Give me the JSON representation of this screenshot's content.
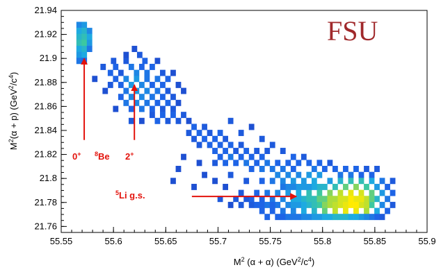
{
  "chart_data": {
    "type": "heatmap",
    "title": "",
    "watermark": "FSU",
    "watermark_color": "#a0292b",
    "annotation_color": "#e3120b",
    "xlabel": {
      "pre": "M",
      "sup1": "2",
      "mid": " (α + α) (GeV",
      "sup2": "2",
      "slash": "/c",
      "sup3": "4",
      "post": ")"
    },
    "ylabel": {
      "pre": "M",
      "sup1": "2",
      "mid": "(α + p) (GeV",
      "sup2": "2",
      "slash": "/c",
      "sup3": "4",
      "post": ")"
    },
    "xlim": [
      55.55,
      55.9
    ],
    "ylim": [
      21.755,
      21.94
    ],
    "xticks": [
      55.55,
      55.6,
      55.65,
      55.7,
      55.75,
      55.8,
      55.85,
      55.9
    ],
    "xtick_labels": [
      "55.55",
      "55.6",
      "55.65",
      "55.7",
      "55.75",
      "55.8",
      "55.85",
      "55.9"
    ],
    "yticks": [
      21.76,
      21.78,
      21.8,
      21.82,
      21.84,
      21.86,
      21.88,
      21.9,
      21.92,
      21.94
    ],
    "ytick_labels": [
      "21.76",
      "21.78",
      "21.8",
      "21.82",
      "21.84",
      "21.86",
      "21.88",
      "21.9",
      "21.92",
      "21.94"
    ],
    "grid": false,
    "colormap": "blue-cyan-green-yellow",
    "bin_width": [
      0.005,
      0.005
    ],
    "cells": [
      [
        55.567,
        21.928,
        0.4
      ],
      [
        55.572,
        21.928,
        0.45
      ],
      [
        55.567,
        21.923,
        0.5
      ],
      [
        55.572,
        21.923,
        0.55
      ],
      [
        55.577,
        21.923,
        0.4
      ],
      [
        55.567,
        21.918,
        0.55
      ],
      [
        55.572,
        21.918,
        0.6
      ],
      [
        55.577,
        21.918,
        0.5
      ],
      [
        55.567,
        21.913,
        0.6
      ],
      [
        55.572,
        21.913,
        0.65
      ],
      [
        55.577,
        21.913,
        0.45
      ],
      [
        55.567,
        21.908,
        0.5
      ],
      [
        55.572,
        21.908,
        0.55
      ],
      [
        55.577,
        21.908,
        0.35
      ],
      [
        55.567,
        21.903,
        0.45
      ],
      [
        55.572,
        21.903,
        0.5
      ],
      [
        55.567,
        21.898,
        0.35
      ],
      [
        55.572,
        21.898,
        0.3
      ],
      [
        55.6,
        21.898,
        0.25
      ],
      [
        55.625,
        21.903,
        0.25
      ],
      [
        55.63,
        21.898,
        0.3
      ],
      [
        55.62,
        21.908,
        0.2
      ],
      [
        55.637,
        21.893,
        0.3
      ],
      [
        55.642,
        21.898,
        0.2
      ],
      [
        55.59,
        21.893,
        0.25
      ],
      [
        55.597,
        21.888,
        0.3
      ],
      [
        55.602,
        21.893,
        0.3
      ],
      [
        55.607,
        21.888,
        0.25
      ],
      [
        55.612,
        21.898,
        0.25
      ],
      [
        55.617,
        21.893,
        0.35
      ],
      [
        55.622,
        21.888,
        0.4
      ],
      [
        55.627,
        21.893,
        0.3
      ],
      [
        55.632,
        21.888,
        0.35
      ],
      [
        55.647,
        21.888,
        0.25
      ],
      [
        55.652,
        21.883,
        0.3
      ],
      [
        55.602,
        21.883,
        0.3
      ],
      [
        55.607,
        21.878,
        0.3
      ],
      [
        55.612,
        21.883,
        0.4
      ],
      [
        55.617,
        21.878,
        0.45
      ],
      [
        55.622,
        21.883,
        0.45
      ],
      [
        55.627,
        21.878,
        0.4
      ],
      [
        55.632,
        21.883,
        0.35
      ],
      [
        55.637,
        21.878,
        0.3
      ],
      [
        55.642,
        21.883,
        0.35
      ],
      [
        55.647,
        21.878,
        0.3
      ],
      [
        55.612,
        21.873,
        0.35
      ],
      [
        55.617,
        21.868,
        0.4
      ],
      [
        55.622,
        21.873,
        0.45
      ],
      [
        55.627,
        21.868,
        0.4
      ],
      [
        55.632,
        21.873,
        0.4
      ],
      [
        55.637,
        21.868,
        0.35
      ],
      [
        55.642,
        21.873,
        0.35
      ],
      [
        55.647,
        21.868,
        0.3
      ],
      [
        55.652,
        21.873,
        0.25
      ],
      [
        55.657,
        21.868,
        0.25
      ],
      [
        55.607,
        21.868,
        0.3
      ],
      [
        55.612,
        21.863,
        0.35
      ],
      [
        55.617,
        21.858,
        0.3
      ],
      [
        55.622,
        21.863,
        0.4
      ],
      [
        55.627,
        21.858,
        0.35
      ],
      [
        55.632,
        21.863,
        0.35
      ],
      [
        55.637,
        21.858,
        0.3
      ],
      [
        55.642,
        21.863,
        0.3
      ],
      [
        55.647,
        21.858,
        0.25
      ],
      [
        55.652,
        21.863,
        0.3
      ],
      [
        55.657,
        21.858,
        0.25
      ],
      [
        55.662,
        21.863,
        0.2
      ],
      [
        55.637,
        21.853,
        0.25
      ],
      [
        55.642,
        21.848,
        0.3
      ],
      [
        55.647,
        21.853,
        0.3
      ],
      [
        55.652,
        21.848,
        0.25
      ],
      [
        55.657,
        21.853,
        0.3
      ],
      [
        55.662,
        21.848,
        0.25
      ],
      [
        55.667,
        21.853,
        0.25
      ],
      [
        55.672,
        21.848,
        0.2
      ],
      [
        55.597,
        21.878,
        0.25
      ],
      [
        55.592,
        21.873,
        0.2
      ],
      [
        55.602,
        21.858,
        0.2
      ],
      [
        55.627,
        21.848,
        0.2
      ],
      [
        55.617,
        21.848,
        0.25
      ],
      [
        55.667,
        21.873,
        0.2
      ],
      [
        55.662,
        21.878,
        0.2
      ],
      [
        55.657,
        21.888,
        0.2
      ],
      [
        55.582,
        21.883,
        0.2
      ],
      [
        55.612,
        21.903,
        0.2
      ],
      [
        55.672,
        21.838,
        0.25
      ],
      [
        55.677,
        21.843,
        0.3
      ],
      [
        55.682,
        21.838,
        0.3
      ],
      [
        55.687,
        21.843,
        0.25
      ],
      [
        55.692,
        21.838,
        0.25
      ],
      [
        55.697,
        21.833,
        0.3
      ],
      [
        55.702,
        21.838,
        0.3
      ],
      [
        55.707,
        21.833,
        0.25
      ],
      [
        55.677,
        21.833,
        0.25
      ],
      [
        55.682,
        21.828,
        0.25
      ],
      [
        55.687,
        21.833,
        0.3
      ],
      [
        55.692,
        21.828,
        0.3
      ],
      [
        55.697,
        21.823,
        0.3
      ],
      [
        55.702,
        21.828,
        0.3
      ],
      [
        55.707,
        21.823,
        0.3
      ],
      [
        55.712,
        21.828,
        0.3
      ],
      [
        55.717,
        21.823,
        0.25
      ],
      [
        55.722,
        21.828,
        0.25
      ],
      [
        55.727,
        21.823,
        0.3
      ],
      [
        55.732,
        21.818,
        0.3
      ],
      [
        55.737,
        21.823,
        0.25
      ],
      [
        55.742,
        21.818,
        0.3
      ],
      [
        55.747,
        21.823,
        0.25
      ],
      [
        55.697,
        21.813,
        0.25
      ],
      [
        55.702,
        21.818,
        0.3
      ],
      [
        55.707,
        21.813,
        0.3
      ],
      [
        55.712,
        21.818,
        0.35
      ],
      [
        55.717,
        21.813,
        0.3
      ],
      [
        55.722,
        21.818,
        0.3
      ],
      [
        55.727,
        21.813,
        0.35
      ],
      [
        55.732,
        21.808,
        0.3
      ],
      [
        55.737,
        21.813,
        0.3
      ],
      [
        55.742,
        21.808,
        0.35
      ],
      [
        55.747,
        21.813,
        0.35
      ],
      [
        55.752,
        21.808,
        0.35
      ],
      [
        55.757,
        21.813,
        0.3
      ],
      [
        55.762,
        21.808,
        0.35
      ],
      [
        55.767,
        21.813,
        0.3
      ],
      [
        55.772,
        21.808,
        0.3
      ],
      [
        55.712,
        21.848,
        0.25
      ],
      [
        55.722,
        21.838,
        0.25
      ],
      [
        55.732,
        21.843,
        0.2
      ],
      [
        55.742,
        21.833,
        0.25
      ],
      [
        55.752,
        21.828,
        0.25
      ],
      [
        55.762,
        21.823,
        0.25
      ],
      [
        55.772,
        21.818,
        0.3
      ],
      [
        55.777,
        21.813,
        0.3
      ],
      [
        55.782,
        21.818,
        0.25
      ],
      [
        55.787,
        21.813,
        0.3
      ],
      [
        55.792,
        21.808,
        0.35
      ],
      [
        55.797,
        21.813,
        0.3
      ],
      [
        55.802,
        21.808,
        0.3
      ],
      [
        55.807,
        21.813,
        0.25
      ],
      [
        55.812,
        21.808,
        0.3
      ],
      [
        55.817,
        21.803,
        0.35
      ],
      [
        55.822,
        21.808,
        0.3
      ],
      [
        55.827,
        21.803,
        0.35
      ],
      [
        55.832,
        21.808,
        0.3
      ],
      [
        55.837,
        21.803,
        0.3
      ],
      [
        55.842,
        21.808,
        0.25
      ],
      [
        55.847,
        21.803,
        0.3
      ],
      [
        55.852,
        21.808,
        0.25
      ],
      [
        55.667,
        21.818,
        0.2
      ],
      [
        55.662,
        21.808,
        0.2
      ],
      [
        55.657,
        21.798,
        0.2
      ],
      [
        55.682,
        21.813,
        0.2
      ],
      [
        55.727,
        21.798,
        0.25
      ],
      [
        55.712,
        21.803,
        0.25
      ],
      [
        55.742,
        21.798,
        0.3
      ],
      [
        55.752,
        21.798,
        0.35
      ],
      [
        55.757,
        21.803,
        0.4
      ],
      [
        55.762,
        21.798,
        0.4
      ],
      [
        55.767,
        21.803,
        0.4
      ],
      [
        55.772,
        21.798,
        0.45
      ],
      [
        55.777,
        21.803,
        0.4
      ],
      [
        55.782,
        21.798,
        0.45
      ],
      [
        55.787,
        21.803,
        0.45
      ],
      [
        55.792,
        21.798,
        0.5
      ],
      [
        55.797,
        21.803,
        0.45
      ],
      [
        55.722,
        21.788,
        0.25
      ],
      [
        55.732,
        21.783,
        0.3
      ],
      [
        55.737,
        21.788,
        0.3
      ],
      [
        55.742,
        21.783,
        0.3
      ],
      [
        55.747,
        21.788,
        0.35
      ],
      [
        55.752,
        21.783,
        0.35
      ],
      [
        55.757,
        21.788,
        0.4
      ],
      [
        55.762,
        21.783,
        0.4
      ],
      [
        55.767,
        21.788,
        0.45
      ],
      [
        55.772,
        21.783,
        0.5
      ],
      [
        55.777,
        21.788,
        0.5
      ],
      [
        55.782,
        21.783,
        0.55
      ],
      [
        55.787,
        21.788,
        0.6
      ],
      [
        55.792,
        21.783,
        0.6
      ],
      [
        55.797,
        21.788,
        0.65
      ],
      [
        55.802,
        21.783,
        0.7
      ],
      [
        55.807,
        21.788,
        0.75
      ],
      [
        55.812,
        21.783,
        0.8
      ],
      [
        55.817,
        21.788,
        0.85
      ],
      [
        55.822,
        21.783,
        0.9
      ],
      [
        55.827,
        21.788,
        0.95
      ],
      [
        55.832,
        21.783,
        0.95
      ],
      [
        55.837,
        21.788,
        0.9
      ],
      [
        55.842,
        21.783,
        0.85
      ],
      [
        55.847,
        21.788,
        0.7
      ],
      [
        55.852,
        21.783,
        0.55
      ],
      [
        55.857,
        21.788,
        0.45
      ],
      [
        55.862,
        21.783,
        0.35
      ],
      [
        55.867,
        21.788,
        0.3
      ],
      [
        55.802,
        21.793,
        0.55
      ],
      [
        55.807,
        21.798,
        0.45
      ],
      [
        55.812,
        21.793,
        0.6
      ],
      [
        55.817,
        21.798,
        0.55
      ],
      [
        55.822,
        21.793,
        0.7
      ],
      [
        55.827,
        21.798,
        0.6
      ],
      [
        55.832,
        21.793,
        0.75
      ],
      [
        55.837,
        21.798,
        0.6
      ],
      [
        55.842,
        21.793,
        0.65
      ],
      [
        55.847,
        21.798,
        0.5
      ],
      [
        55.852,
        21.793,
        0.45
      ],
      [
        55.857,
        21.798,
        0.35
      ],
      [
        55.862,
        21.793,
        0.3
      ],
      [
        55.867,
        21.798,
        0.25
      ],
      [
        55.757,
        21.778,
        0.35
      ],
      [
        55.762,
        21.773,
        0.35
      ],
      [
        55.767,
        21.778,
        0.4
      ],
      [
        55.772,
        21.773,
        0.4
      ],
      [
        55.777,
        21.778,
        0.45
      ],
      [
        55.782,
        21.773,
        0.5
      ],
      [
        55.787,
        21.778,
        0.55
      ],
      [
        55.792,
        21.773,
        0.55
      ],
      [
        55.797,
        21.778,
        0.65
      ],
      [
        55.802,
        21.773,
        0.7
      ],
      [
        55.807,
        21.778,
        0.8
      ],
      [
        55.812,
        21.773,
        0.85
      ],
      [
        55.817,
        21.778,
        0.9
      ],
      [
        55.822,
        21.773,
        0.95
      ],
      [
        55.827,
        21.778,
        1.0
      ],
      [
        55.832,
        21.773,
        0.95
      ],
      [
        55.837,
        21.778,
        0.9
      ],
      [
        55.842,
        21.773,
        0.8
      ],
      [
        55.847,
        21.778,
        0.65
      ],
      [
        55.852,
        21.773,
        0.5
      ],
      [
        55.857,
        21.778,
        0.4
      ],
      [
        55.862,
        21.773,
        0.3
      ],
      [
        55.867,
        21.778,
        0.25
      ],
      [
        55.742,
        21.773,
        0.3
      ],
      [
        55.747,
        21.768,
        0.3
      ],
      [
        55.752,
        21.773,
        0.3
      ],
      [
        55.757,
        21.768,
        0.3
      ],
      [
        55.762,
        21.768,
        0.3
      ],
      [
        55.767,
        21.768,
        0.35
      ],
      [
        55.772,
        21.768,
        0.35
      ],
      [
        55.777,
        21.768,
        0.35
      ],
      [
        55.782,
        21.768,
        0.4
      ],
      [
        55.787,
        21.768,
        0.4
      ],
      [
        55.792,
        21.768,
        0.45
      ],
      [
        55.797,
        21.768,
        0.45
      ],
      [
        55.802,
        21.768,
        0.5
      ],
      [
        55.807,
        21.768,
        0.5
      ],
      [
        55.812,
        21.768,
        0.55
      ],
      [
        55.817,
        21.768,
        0.55
      ],
      [
        55.822,
        21.768,
        0.55
      ],
      [
        55.827,
        21.768,
        0.5
      ],
      [
        55.832,
        21.768,
        0.5
      ],
      [
        55.837,
        21.768,
        0.45
      ],
      [
        55.842,
        21.768,
        0.4
      ],
      [
        55.847,
        21.768,
        0.35
      ],
      [
        55.852,
        21.768,
        0.3
      ],
      [
        55.857,
        21.768,
        0.25
      ],
      [
        55.742,
        21.778,
        0.3
      ],
      [
        55.732,
        21.778,
        0.25
      ],
      [
        55.727,
        21.783,
        0.25
      ],
      [
        55.717,
        21.783,
        0.25
      ],
      [
        55.702,
        21.783,
        0.25
      ],
      [
        55.712,
        21.778,
        0.2
      ],
      [
        55.722,
        21.778,
        0.25
      ],
      [
        55.737,
        21.778,
        0.3
      ],
      [
        55.747,
        21.778,
        0.35
      ],
      [
        55.752,
        21.778,
        0.3
      ],
      [
        55.797,
        21.793,
        0.55
      ],
      [
        55.792,
        21.793,
        0.5
      ],
      [
        55.787,
        21.793,
        0.45
      ],
      [
        55.782,
        21.793,
        0.45
      ],
      [
        55.777,
        21.793,
        0.45
      ],
      [
        55.772,
        21.793,
        0.4
      ],
      [
        55.767,
        21.793,
        0.4
      ],
      [
        55.762,
        21.793,
        0.35
      ],
      [
        55.812,
        21.778,
        0.85
      ],
      [
        55.817,
        21.783,
        0.9
      ],
      [
        55.822,
        21.778,
        0.95
      ],
      [
        55.827,
        21.783,
        1.0
      ],
      [
        55.832,
        21.778,
        1.0
      ],
      [
        55.837,
        21.783,
        0.95
      ],
      [
        55.842,
        21.778,
        0.85
      ],
      [
        55.847,
        21.783,
        0.7
      ],
      [
        55.802,
        21.778,
        0.75
      ],
      [
        55.807,
        21.783,
        0.8
      ],
      [
        55.797,
        21.783,
        0.7
      ],
      [
        55.792,
        21.778,
        0.6
      ],
      [
        55.787,
        21.783,
        0.6
      ],
      [
        55.782,
        21.778,
        0.5
      ],
      [
        55.777,
        21.783,
        0.5
      ],
      [
        55.772,
        21.778,
        0.45
      ],
      [
        55.707,
        21.793,
        0.2
      ],
      [
        55.697,
        21.798,
        0.2
      ],
      [
        55.687,
        21.803,
        0.2
      ],
      [
        55.677,
        21.793,
        0.2
      ]
    ],
    "annotations": [
      {
        "label": "0",
        "sup": "+",
        "arrow_from": [
          55.572,
          21.832
        ],
        "arrow_to": [
          55.572,
          21.9
        ]
      },
      {
        "label": "",
        "pre_sup": "8",
        "text": "Be"
      },
      {
        "label": "2",
        "sup": "+",
        "arrow_from": [
          55.62,
          21.832
        ],
        "arrow_to": [
          55.62,
          21.878
        ]
      },
      {
        "label": "",
        "pre_sup": "5",
        "text": "Li g.s.",
        "arrow_from": [
          55.675,
          21.785
        ],
        "arrow_to": [
          55.775,
          21.785
        ]
      }
    ]
  }
}
